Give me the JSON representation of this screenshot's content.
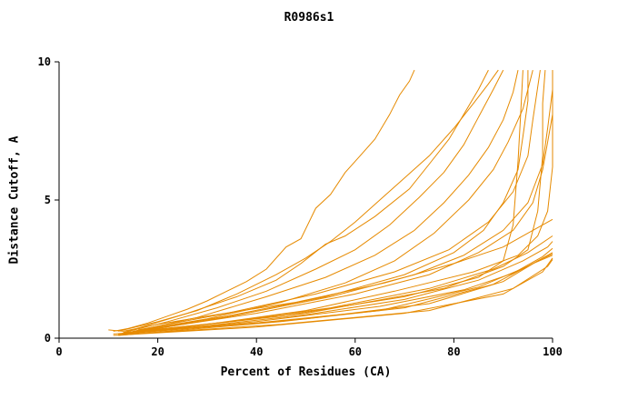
{
  "colors": {
    "line": "#e68a00",
    "axis": "#000000",
    "background": "#ffffff"
  },
  "chart_data": {
    "type": "line",
    "title": "R0986s1",
    "xlabel": "Percent of Residues (CA)",
    "ylabel": "Distance Cutoff, A",
    "xlim": [
      0,
      100
    ],
    "ylim": [
      0,
      10
    ],
    "xticks": [
      0,
      20,
      40,
      60,
      80,
      100
    ],
    "yticks": [
      0,
      5,
      10
    ],
    "grid": false,
    "legend_position": "none",
    "series": [
      [
        [
          11,
          0.25
        ],
        [
          14,
          0.35
        ],
        [
          18,
          0.55
        ],
        [
          22,
          0.8
        ],
        [
          26,
          1.05
        ],
        [
          30,
          1.35
        ],
        [
          34,
          1.7
        ],
        [
          38,
          2.05
        ],
        [
          42,
          2.5
        ],
        [
          46,
          3.3
        ],
        [
          49,
          3.6
        ],
        [
          52,
          4.7
        ],
        [
          55,
          5.2
        ],
        [
          58,
          6.0
        ],
        [
          61,
          6.6
        ],
        [
          64,
          7.2
        ],
        [
          67,
          8.1
        ],
        [
          69,
          8.8
        ],
        [
          71,
          9.3
        ],
        [
          72,
          9.7
        ]
      ],
      [
        [
          12,
          0.25
        ],
        [
          20,
          0.6
        ],
        [
          28,
          1.0
        ],
        [
          36,
          1.6
        ],
        [
          44,
          2.3
        ],
        [
          50,
          2.9
        ],
        [
          55,
          3.5
        ],
        [
          60,
          4.2
        ],
        [
          65,
          5.0
        ],
        [
          70,
          5.8
        ],
        [
          75,
          6.6
        ],
        [
          80,
          7.6
        ],
        [
          84,
          8.5
        ],
        [
          87,
          9.2
        ],
        [
          89,
          9.7
        ]
      ],
      [
        [
          13,
          0.2
        ],
        [
          22,
          0.6
        ],
        [
          32,
          1.1
        ],
        [
          42,
          1.7
        ],
        [
          52,
          2.5
        ],
        [
          60,
          3.2
        ],
        [
          67,
          4.1
        ],
        [
          73,
          5.1
        ],
        [
          78,
          6.0
        ],
        [
          82,
          7.0
        ],
        [
          85,
          8.0
        ],
        [
          88,
          9.0
        ],
        [
          90,
          9.7
        ]
      ],
      [
        [
          14,
          0.2
        ],
        [
          28,
          0.75
        ],
        [
          42,
          1.5
        ],
        [
          54,
          2.2
        ],
        [
          64,
          3.0
        ],
        [
          72,
          3.9
        ],
        [
          78,
          4.9
        ],
        [
          83,
          5.9
        ],
        [
          87,
          6.9
        ],
        [
          90,
          7.9
        ],
        [
          92,
          8.9
        ],
        [
          93,
          9.7
        ]
      ],
      [
        [
          15,
          0.25
        ],
        [
          30,
          0.7
        ],
        [
          45,
          1.3
        ],
        [
          58,
          2.0
        ],
        [
          68,
          2.8
        ],
        [
          76,
          3.8
        ],
        [
          83,
          5.0
        ],
        [
          88,
          6.1
        ],
        [
          91,
          7.1
        ],
        [
          94,
          8.3
        ],
        [
          96,
          9.7
        ]
      ],
      [
        [
          16,
          0.3
        ],
        [
          34,
          0.9
        ],
        [
          52,
          1.6
        ],
        [
          68,
          2.4
        ],
        [
          79,
          3.2
        ],
        [
          87,
          4.2
        ],
        [
          92,
          5.3
        ],
        [
          95,
          6.6
        ],
        [
          96,
          7.9
        ],
        [
          97,
          9.1
        ],
        [
          97.5,
          9.7
        ]
      ],
      [
        [
          15,
          0.2
        ],
        [
          35,
          0.8
        ],
        [
          55,
          1.5
        ],
        [
          72,
          2.3
        ],
        [
          82,
          3.0
        ],
        [
          90,
          3.9
        ],
        [
          95,
          4.9
        ],
        [
          98,
          6.3
        ],
        [
          99,
          7.6
        ],
        [
          100,
          9.0
        ],
        [
          100,
          9.7
        ]
      ],
      [
        [
          12,
          0.15
        ],
        [
          30,
          0.5
        ],
        [
          50,
          1.0
        ],
        [
          68,
          1.7
        ],
        [
          84,
          2.4
        ],
        [
          93,
          3.0
        ],
        [
          97,
          3.7
        ],
        [
          99,
          4.6
        ],
        [
          100,
          6.2
        ],
        [
          100,
          9.6
        ]
      ],
      [
        [
          13,
          0.2
        ],
        [
          35,
          0.6
        ],
        [
          55,
          1.1
        ],
        [
          75,
          1.8
        ],
        [
          88,
          2.5
        ],
        [
          95,
          3.1
        ],
        [
          100,
          3.7
        ]
      ],
      [
        [
          11,
          0.15
        ],
        [
          30,
          0.45
        ],
        [
          50,
          0.85
        ],
        [
          70,
          1.4
        ],
        [
          85,
          2.1
        ],
        [
          94,
          2.8
        ],
        [
          99,
          3.3
        ],
        [
          100,
          3.5
        ]
      ],
      [
        [
          12,
          0.15
        ],
        [
          40,
          0.6
        ],
        [
          65,
          1.15
        ],
        [
          82,
          1.75
        ],
        [
          92,
          2.35
        ],
        [
          98,
          2.95
        ],
        [
          100,
          3.25
        ]
      ],
      [
        [
          14,
          0.2
        ],
        [
          40,
          0.55
        ],
        [
          65,
          1.0
        ],
        [
          85,
          1.85
        ],
        [
          95,
          2.6
        ],
        [
          100,
          3.1
        ]
      ],
      [
        [
          12,
          0.1
        ],
        [
          45,
          0.6
        ],
        [
          70,
          1.1
        ],
        [
          88,
          1.95
        ],
        [
          96,
          2.7
        ],
        [
          100,
          3.0
        ]
      ],
      [
        [
          13,
          0.15
        ],
        [
          50,
          0.7
        ],
        [
          75,
          1.25
        ],
        [
          90,
          2.05
        ],
        [
          97,
          2.8
        ],
        [
          100,
          3.05
        ]
      ],
      [
        [
          11,
          0.1
        ],
        [
          40,
          0.4
        ],
        [
          70,
          0.9
        ],
        [
          90,
          1.6
        ],
        [
          98,
          2.4
        ],
        [
          100,
          2.9
        ]
      ],
      [
        [
          12,
          0.12
        ],
        [
          45,
          0.5
        ],
        [
          75,
          1.0
        ],
        [
          92,
          1.8
        ],
        [
          99,
          2.6
        ],
        [
          100,
          2.85
        ]
      ],
      [
        [
          14,
          0.2
        ],
        [
          34,
          0.8
        ],
        [
          54,
          1.5
        ],
        [
          70,
          2.3
        ],
        [
          80,
          3.1
        ],
        [
          86,
          3.9
        ],
        [
          90,
          4.9
        ],
        [
          93,
          6.1
        ],
        [
          94,
          7.3
        ],
        [
          95,
          8.6
        ],
        [
          95,
          9.7
        ]
      ],
      [
        [
          13,
          0.2
        ],
        [
          26,
          0.9
        ],
        [
          36,
          1.5
        ],
        [
          44,
          2.1
        ],
        [
          49,
          2.7
        ],
        [
          54,
          3.4
        ],
        [
          58,
          3.7
        ],
        [
          64,
          4.4
        ],
        [
          71,
          5.4
        ],
        [
          75,
          6.3
        ],
        [
          79,
          7.2
        ],
        [
          82,
          8.1
        ],
        [
          85,
          9.0
        ],
        [
          87,
          9.7
        ]
      ],
      [
        [
          15,
          0.2
        ],
        [
          45,
          0.8
        ],
        [
          70,
          1.5
        ],
        [
          85,
          2.2
        ],
        [
          90,
          2.8
        ],
        [
          92,
          4.1
        ],
        [
          93,
          6.4
        ],
        [
          93.5,
          8.0
        ],
        [
          94,
          9.7
        ]
      ],
      [
        [
          14,
          0.2
        ],
        [
          50,
          0.9
        ],
        [
          78,
          1.8
        ],
        [
          90,
          2.6
        ],
        [
          95,
          3.2
        ],
        [
          97,
          4.6
        ],
        [
          98,
          6.6
        ],
        [
          98,
          8.5
        ],
        [
          98.5,
          9.7
        ]
      ],
      [
        [
          16,
          0.25
        ],
        [
          40,
          0.9
        ],
        [
          60,
          1.6
        ],
        [
          75,
          2.3
        ],
        [
          85,
          3.1
        ],
        [
          92,
          3.9
        ],
        [
          96,
          4.9
        ],
        [
          98,
          6.1
        ],
        [
          99,
          7.1
        ],
        [
          100,
          8.1
        ],
        [
          100,
          9.7
        ]
      ],
      [
        [
          10,
          0.3
        ],
        [
          13,
          0.25
        ],
        [
          20,
          0.5
        ],
        [
          30,
          0.8
        ],
        [
          48,
          1.3
        ],
        [
          66,
          2.0
        ],
        [
          80,
          2.7
        ],
        [
          90,
          3.3
        ],
        [
          96,
          3.9
        ],
        [
          100,
          4.3
        ]
      ]
    ]
  }
}
